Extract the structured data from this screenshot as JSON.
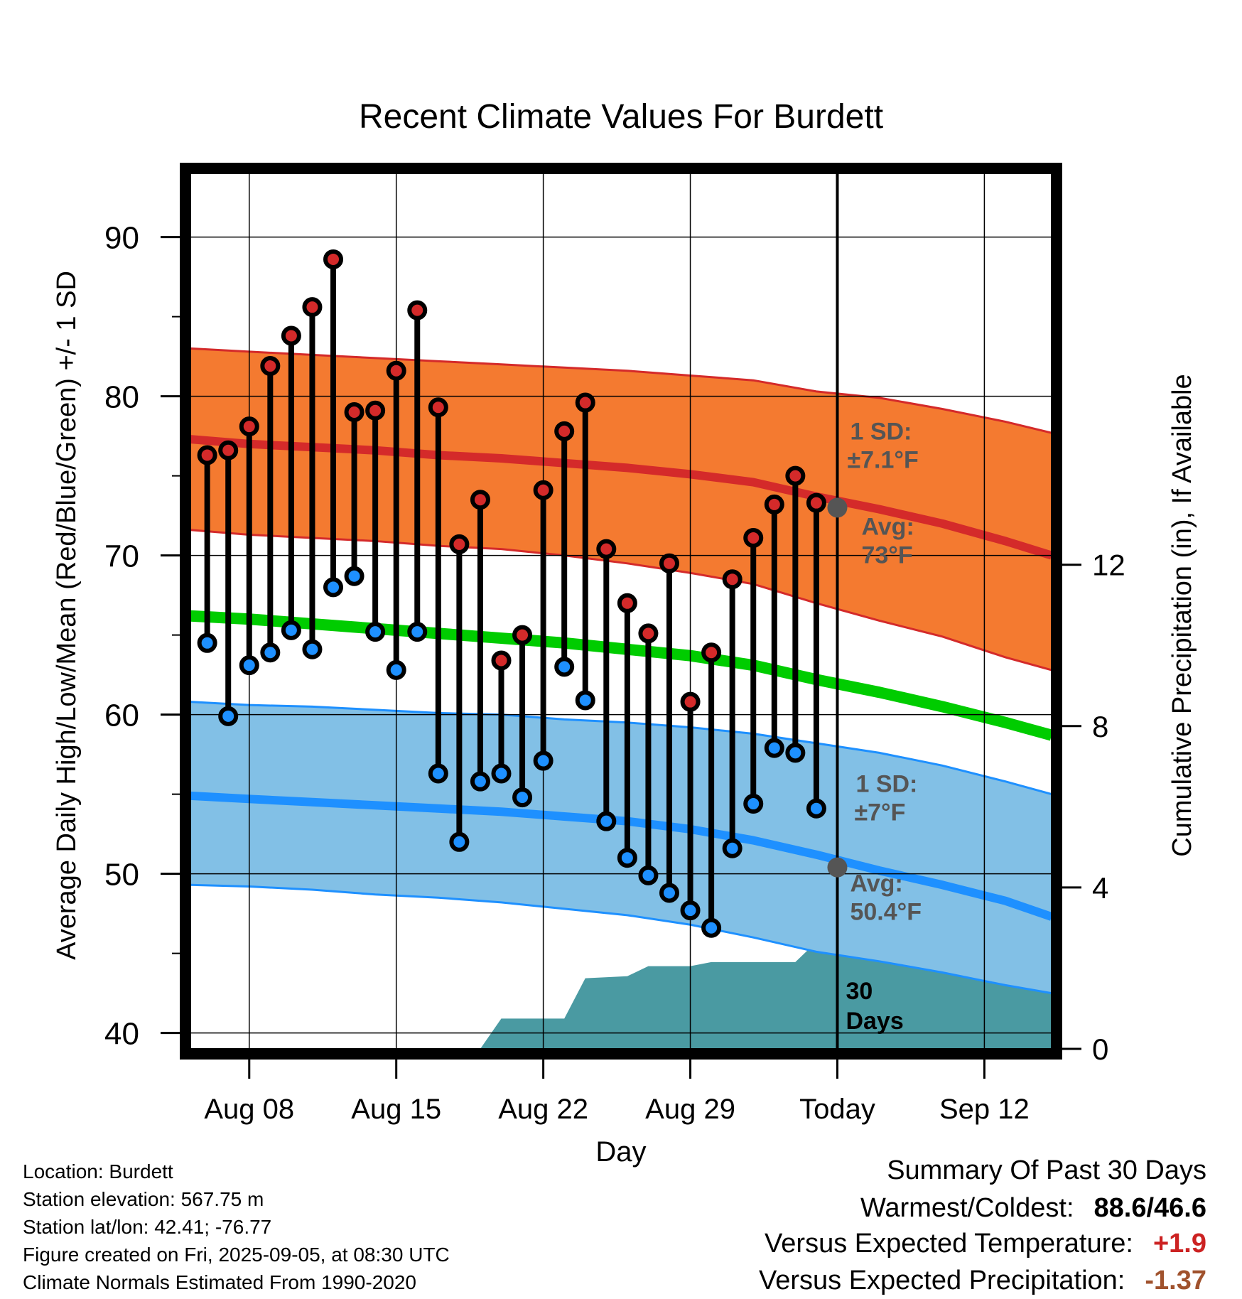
{
  "chart_data": {
    "type": "line",
    "title": "Recent Climate Values For Burdett",
    "xlabel": "Day",
    "ylabel": "Average Daily High/Low/Mean (Red/Blue/Green) +/- 1 SD",
    "ylabel_right": "Cumulative Precipitation (in), If Available",
    "x_ticks": [
      "Aug 08",
      "Aug 15",
      "Aug 22",
      "Aug 29",
      "Today",
      "Sep 12"
    ],
    "ylim": [
      39,
      94
    ],
    "y_ticks": [
      40,
      50,
      60,
      70,
      80,
      90
    ],
    "y2lim": [
      0,
      21.7
    ],
    "y2_ticks": [
      0,
      4,
      8,
      12
    ],
    "x_days_range": [
      0.2,
      41.2
    ],
    "today_day": 31,
    "days": [
      1,
      2,
      3,
      4,
      5,
      6,
      7,
      8,
      9,
      10,
      11,
      12,
      13,
      14,
      15,
      16,
      17,
      18,
      19,
      20,
      21,
      22,
      23,
      24,
      25,
      26,
      27,
      28,
      29,
      30
    ],
    "daily_high": [
      76.3,
      76.6,
      78.1,
      81.9,
      83.8,
      85.6,
      88.6,
      79.0,
      79.1,
      81.6,
      85.4,
      79.3,
      70.7,
      73.5,
      63.4,
      65.0,
      74.1,
      77.8,
      79.6,
      70.4,
      67.0,
      65.1,
      69.5,
      60.8,
      63.9,
      68.5,
      71.1,
      73.2,
      75.0,
      73.3
    ],
    "daily_low": [
      64.5,
      59.9,
      63.1,
      63.9,
      65.3,
      64.1,
      68.0,
      68.7,
      65.2,
      62.8,
      65.2,
      56.3,
      52.0,
      55.8,
      56.3,
      54.8,
      57.1,
      63.0,
      60.9,
      53.3,
      51.0,
      49.9,
      48.8,
      47.7,
      46.6,
      51.6,
      54.4,
      57.9,
      57.6,
      54.1
    ],
    "normal_high": {
      "days": [
        0.2,
        3,
        6,
        9,
        12,
        15,
        18,
        21,
        24,
        27,
        30,
        33,
        36,
        39,
        41.2
      ],
      "avg": [
        77.3,
        77.0,
        76.8,
        76.6,
        76.3,
        76.1,
        75.8,
        75.5,
        75.1,
        74.6,
        73.7,
        72.9,
        72.0,
        70.9,
        70.0
      ],
      "upper": [
        83.0,
        82.8,
        82.6,
        82.4,
        82.2,
        82.0,
        81.8,
        81.6,
        81.3,
        81.0,
        80.3,
        79.9,
        79.2,
        78.4,
        77.7
      ],
      "lower": [
        71.6,
        71.3,
        71.1,
        70.9,
        70.6,
        70.4,
        70.0,
        69.5,
        68.9,
        68.2,
        67.0,
        65.9,
        64.9,
        63.6,
        62.8
      ]
    },
    "normal_low": {
      "days": [
        0.2,
        3,
        6,
        9,
        12,
        15,
        18,
        21,
        24,
        27,
        30,
        33,
        36,
        39,
        41.2
      ],
      "avg": [
        54.9,
        54.7,
        54.5,
        54.3,
        54.1,
        53.9,
        53.6,
        53.3,
        52.8,
        52.1,
        51.2,
        50.2,
        49.3,
        48.3,
        47.3
      ],
      "upper": [
        60.8,
        60.6,
        60.5,
        60.3,
        60.1,
        60.0,
        59.7,
        59.5,
        59.2,
        58.8,
        58.2,
        57.6,
        56.8,
        55.8,
        55.0
      ],
      "lower": [
        49.3,
        49.2,
        49.0,
        48.7,
        48.5,
        48.2,
        47.8,
        47.4,
        46.8,
        46.0,
        45.1,
        44.5,
        43.8,
        43.0,
        42.5
      ]
    },
    "normal_mean": {
      "days": [
        0.2,
        3,
        6,
        9,
        12,
        15,
        18,
        21,
        24,
        27,
        30,
        33,
        36,
        39,
        41.2
      ],
      "values": [
        66.2,
        66.0,
        65.7,
        65.4,
        65.1,
        64.8,
        64.5,
        64.1,
        63.7,
        63.1,
        62.2,
        61.4,
        60.5,
        59.5,
        58.7
      ]
    },
    "precip_cumulative": {
      "days": [
        14.0,
        15.0,
        18.0,
        19.0,
        21.0,
        22.0,
        24.0,
        25.0,
        29.0,
        30.0,
        41.2
      ],
      "values": [
        0.0,
        0.75,
        0.75,
        1.75,
        1.8,
        2.05,
        2.05,
        2.15,
        2.15,
        2.65,
        2.65
      ]
    },
    "high_annotation": {
      "sd_label": "1 SD:",
      "sd_value": "±7.1°F",
      "avg_label": "Avg:",
      "avg_value": "73°F",
      "today_avg": 73.0
    },
    "low_annotation": {
      "sd_label": "1 SD:",
      "sd_value": "±7°F",
      "avg_label": "Avg:",
      "avg_value": "50.4°F",
      "today_avg": 50.4
    },
    "period_label": [
      "30",
      "Days"
    ],
    "colors": {
      "high_band": "#f47a30",
      "high_line": "#d42a2a",
      "low_band": "#82c0e6",
      "low_line": "#1e90ff",
      "mean_line": "#00cc00",
      "precip": "#4a9aa2",
      "high_dot": "#d42a2a",
      "low_dot": "#1e90ff",
      "today_dot": "#555555",
      "annotation_text": "#555555"
    }
  },
  "info": {
    "location": "Location: Burdett",
    "elevation": "Station elevation: 567.75 m",
    "latlon": "Station lat/lon: 42.41; -76.77",
    "created": "Figure created on Fri, 2025-09-05, at 08:30 UTC",
    "normals": "Climate Normals Estimated From 1990-2020"
  },
  "summary": {
    "title": "Summary Of Past 30 Days",
    "warm_cold_label": "Warmest/Coldest:",
    "warm_cold_value": "88.6/46.6",
    "temp_label": "Versus Expected Temperature:",
    "temp_value": "+1.9",
    "precip_label": "Versus Expected Precipitation:",
    "precip_value": "-1.37"
  }
}
